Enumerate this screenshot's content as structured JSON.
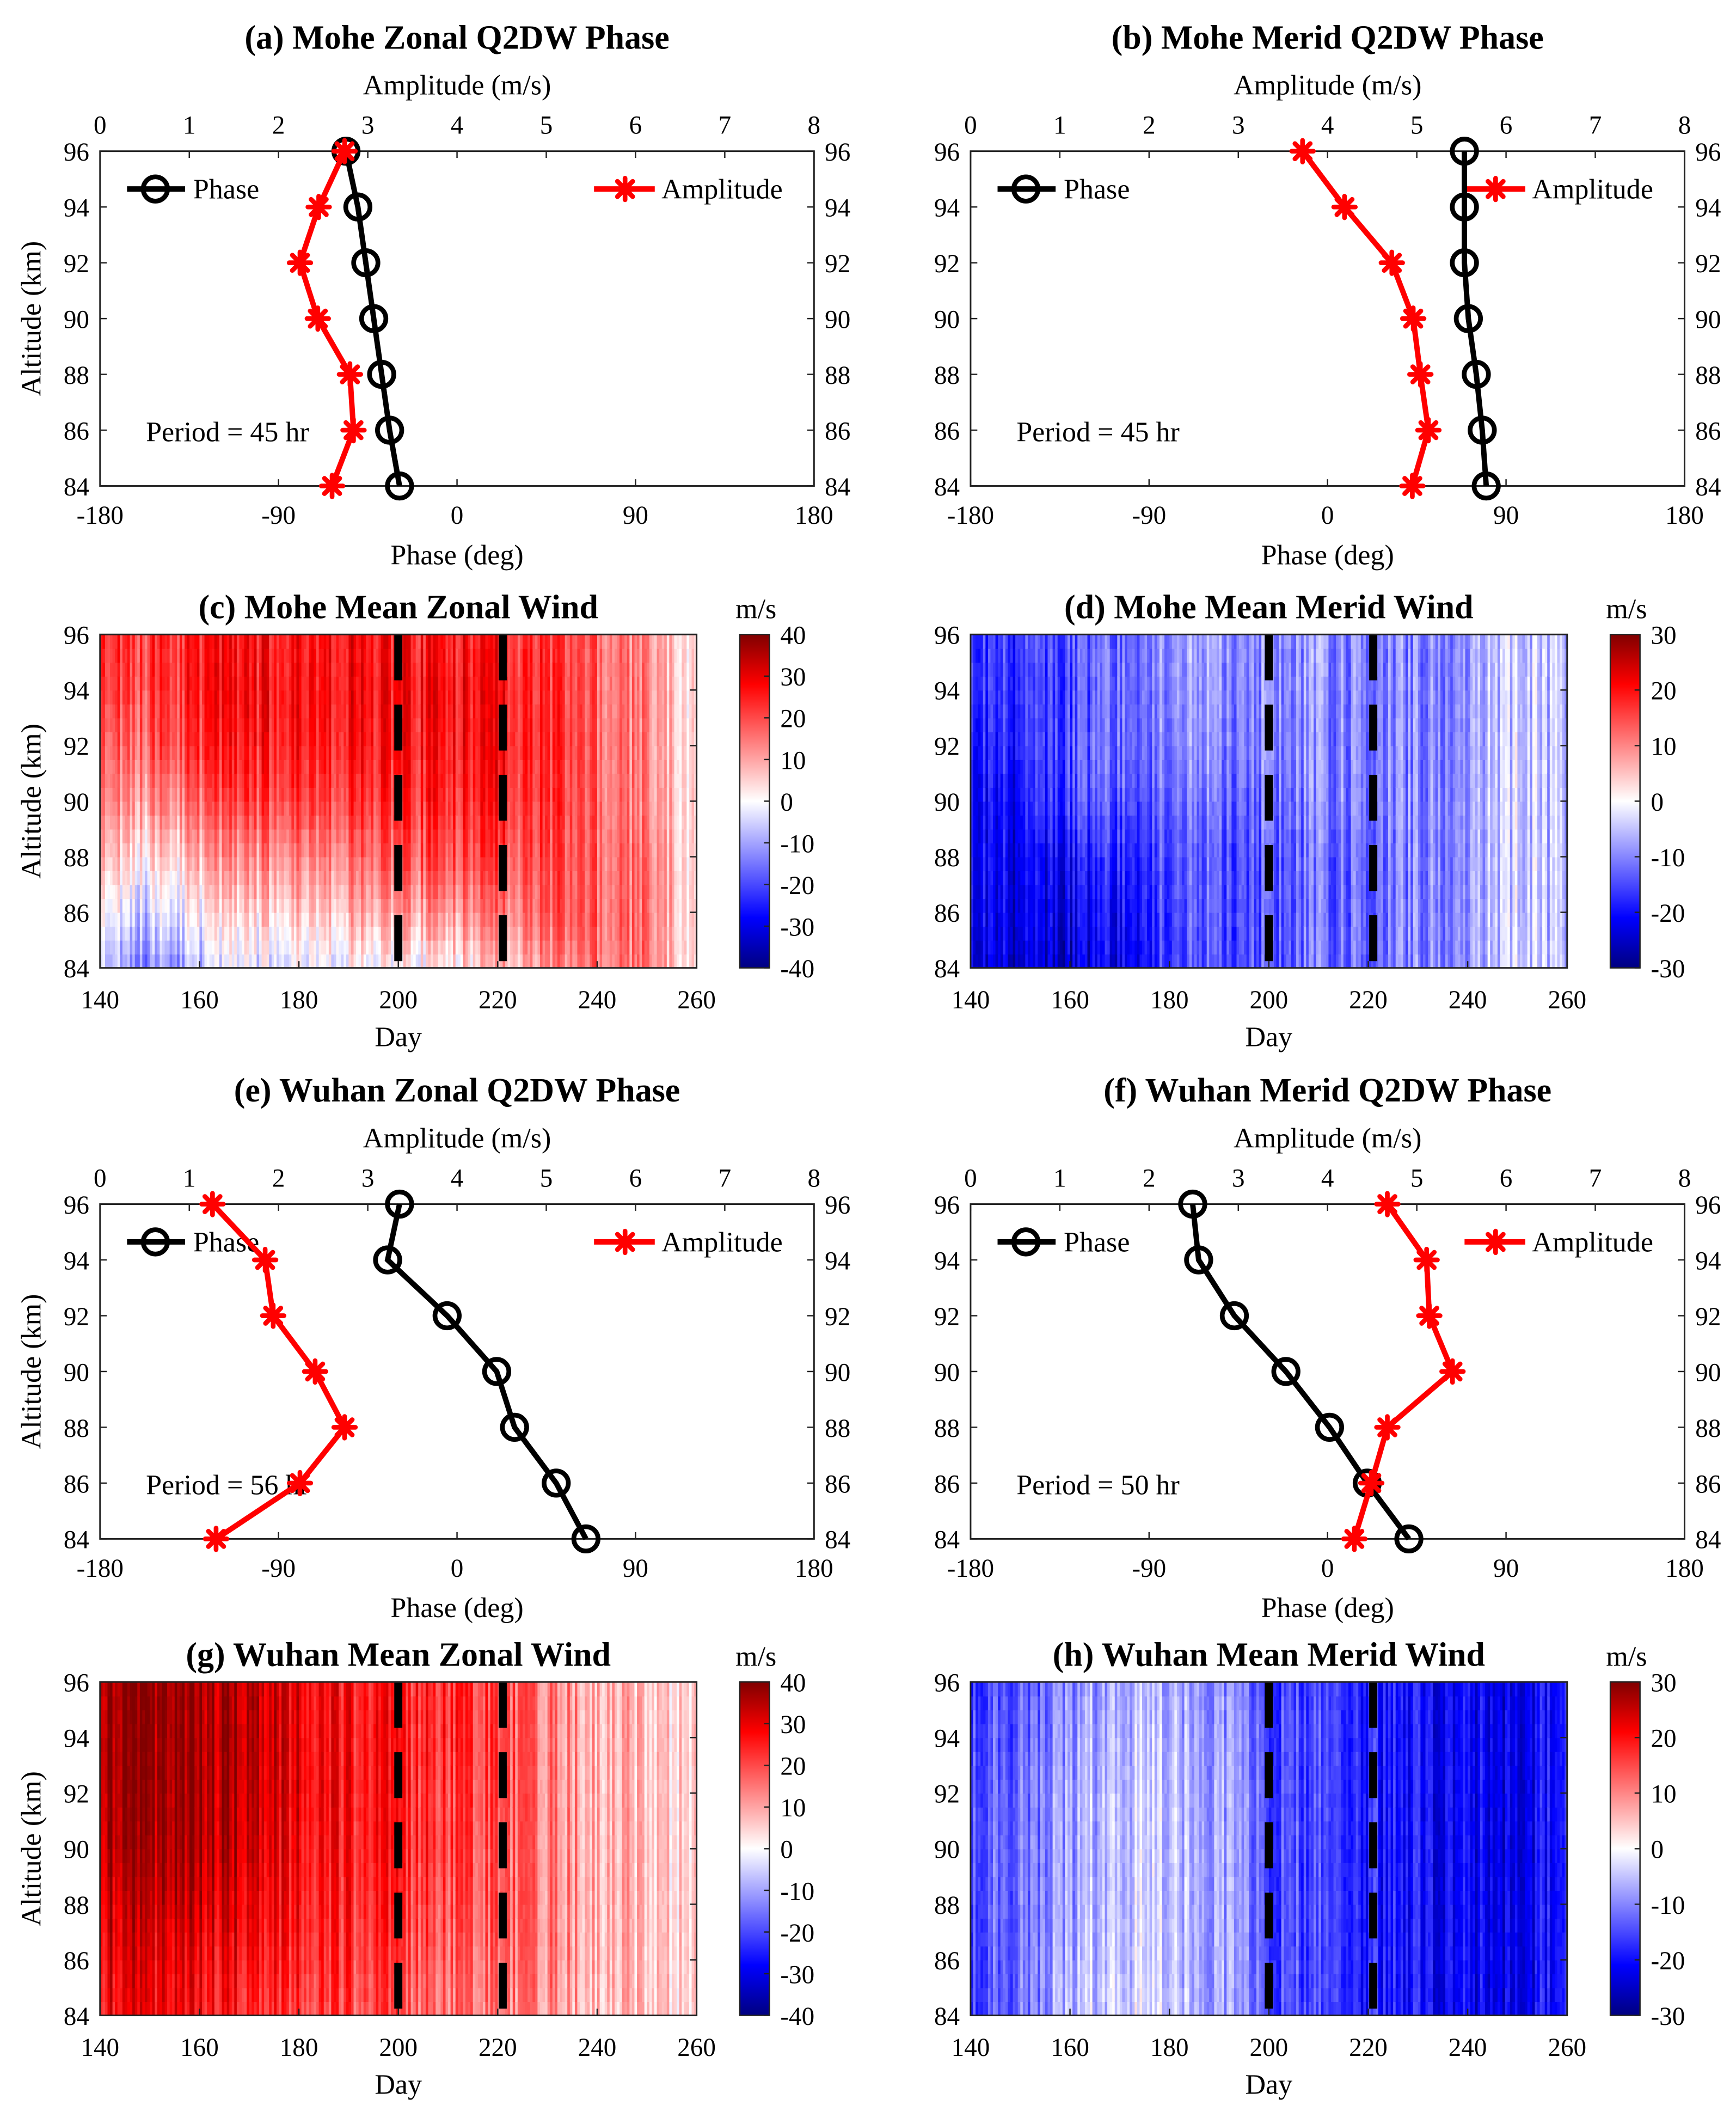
{
  "colors": {
    "phase": "#000000",
    "amplitude": "#ff0000"
  },
  "chart_data": [
    {
      "id": "a",
      "type": "line",
      "title": "(a) Mohe Zonal Q2DW Phase",
      "top_xlabel": "Amplitude (m/s)",
      "xlabel": "Phase (deg)",
      "ylabel": "Altitude (km)",
      "xlim": [
        -180,
        180
      ],
      "top_xlim": [
        0,
        8
      ],
      "ylim": [
        84,
        96
      ],
      "xticks": [
        -180,
        -90,
        0,
        90,
        180
      ],
      "top_xticks": [
        0,
        1,
        2,
        3,
        4,
        5,
        6,
        7,
        8
      ],
      "yticks": [
        84,
        86,
        88,
        90,
        92,
        94,
        96
      ],
      "annotation": "Period = 45 hr",
      "legend": {
        "phase": "Phase",
        "amplitude": "Amplitude"
      },
      "altitude": [
        96,
        94,
        92,
        90,
        88,
        86,
        84
      ],
      "series": [
        {
          "name": "Phase",
          "axis": "bottom",
          "values": [
            -56,
            -50,
            -46,
            -42,
            -38,
            -34,
            -29
          ]
        },
        {
          "name": "Amplitude",
          "axis": "top",
          "values": [
            2.74,
            2.45,
            2.24,
            2.44,
            2.8,
            2.84,
            2.6
          ]
        }
      ]
    },
    {
      "id": "b",
      "type": "line",
      "title": "(b) Mohe Merid Q2DW Phase",
      "top_xlabel": "Amplitude (m/s)",
      "xlabel": "Phase (deg)",
      "ylabel": "",
      "xlim": [
        -180,
        180
      ],
      "top_xlim": [
        0,
        8
      ],
      "ylim": [
        84,
        96
      ],
      "xticks": [
        -180,
        -90,
        0,
        90,
        180
      ],
      "top_xticks": [
        0,
        1,
        2,
        3,
        4,
        5,
        6,
        7,
        8
      ],
      "yticks": [
        84,
        86,
        88,
        90,
        92,
        94,
        96
      ],
      "annotation": "Period = 45 hr",
      "legend": {
        "phase": "Phase",
        "amplitude": "Amplitude"
      },
      "altitude": [
        96,
        94,
        92,
        90,
        88,
        86,
        84
      ],
      "series": [
        {
          "name": "Phase",
          "axis": "bottom",
          "values": [
            69,
            69,
            69,
            71,
            75,
            78,
            80
          ]
        },
        {
          "name": "Amplitude",
          "axis": "top",
          "values": [
            3.72,
            4.19,
            4.72,
            4.96,
            5.04,
            5.13,
            4.95
          ]
        }
      ]
    },
    {
      "id": "c",
      "type": "heatmap",
      "title": "(c) Mohe Mean Zonal Wind",
      "xlabel": "Day",
      "ylabel": "Altitude (km)",
      "cbar_label": "m/s",
      "xlim": [
        140,
        260
      ],
      "ylim": [
        84,
        96
      ],
      "clim": [
        -40,
        40
      ],
      "xticks": [
        140,
        160,
        180,
        200,
        220,
        240,
        260
      ],
      "yticks": [
        84,
        86,
        88,
        90,
        92,
        94,
        96
      ],
      "cbar_ticks": [
        -40,
        -30,
        -20,
        -10,
        0,
        10,
        20,
        30,
        40
      ],
      "dashed_days": [
        200,
        221
      ],
      "days": [
        140,
        150,
        160,
        170,
        180,
        190,
        200,
        210,
        220,
        230,
        240,
        250,
        260
      ],
      "altitudes": [
        84,
        86,
        88,
        90,
        92,
        94,
        96
      ],
      "values": [
        [
          -10,
          -14,
          -8,
          -4,
          -2,
          0,
          -2,
          2,
          6,
          12,
          16,
          14,
          2
        ],
        [
          -3,
          -5,
          0,
          4,
          6,
          8,
          10,
          12,
          14,
          18,
          18,
          14,
          3
        ],
        [
          5,
          3,
          8,
          12,
          14,
          15,
          18,
          20,
          20,
          20,
          18,
          14,
          3
        ],
        [
          10,
          12,
          16,
          20,
          22,
          22,
          22,
          24,
          24,
          22,
          18,
          12,
          3
        ],
        [
          14,
          18,
          22,
          24,
          26,
          26,
          25,
          26,
          26,
          23,
          18,
          12,
          3
        ],
        [
          18,
          21,
          24,
          26,
          27,
          27,
          26,
          27,
          26,
          23,
          18,
          12,
          3
        ],
        [
          20,
          22,
          24,
          25,
          26,
          27,
          25,
          26,
          25,
          22,
          18,
          12,
          3
        ]
      ]
    },
    {
      "id": "d",
      "type": "heatmap",
      "title": "(d) Mohe Mean Merid Wind",
      "xlabel": "Day",
      "ylabel": "",
      "cbar_label": "m/s",
      "xlim": [
        140,
        260
      ],
      "ylim": [
        84,
        96
      ],
      "clim": [
        -30,
        30
      ],
      "xticks": [
        140,
        160,
        180,
        200,
        220,
        240,
        260
      ],
      "yticks": [
        84,
        86,
        88,
        90,
        92,
        94,
        96
      ],
      "cbar_ticks": [
        -30,
        -20,
        -10,
        0,
        10,
        20,
        30
      ],
      "dashed_days": [
        200,
        221
      ],
      "days": [
        140,
        150,
        160,
        170,
        180,
        190,
        200,
        210,
        220,
        230,
        240,
        250,
        260
      ],
      "altitudes": [
        84,
        86,
        88,
        90,
        92,
        94,
        96
      ],
      "values": [
        [
          -24,
          -24,
          -24,
          -22,
          -16,
          -15,
          -14,
          -12,
          -12,
          -10,
          -8,
          -4,
          -6
        ],
        [
          -22,
          -23,
          -22,
          -20,
          -15,
          -14,
          -14,
          -12,
          -12,
          -10,
          -8,
          -4,
          -6
        ],
        [
          -22,
          -22,
          -20,
          -18,
          -14,
          -14,
          -14,
          -12,
          -12,
          -10,
          -8,
          -4,
          -6
        ],
        [
          -22,
          -20,
          -15,
          -14,
          -12,
          -12,
          -12,
          -10,
          -10,
          -10,
          -8,
          -4,
          -6
        ],
        [
          -20,
          -18,
          -14,
          -12,
          -10,
          -10,
          -10,
          -10,
          -10,
          -10,
          -8,
          -4,
          -6
        ],
        [
          -18,
          -17,
          -15,
          -12,
          -9,
          -9,
          -10,
          -9,
          -10,
          -10,
          -8,
          -4,
          -6
        ],
        [
          -18,
          -16,
          -14,
          -12,
          -8,
          -8,
          -10,
          -8,
          -10,
          -10,
          -8,
          -4,
          -6
        ]
      ]
    },
    {
      "id": "e",
      "type": "line",
      "title": "(e) Wuhan Zonal Q2DW Phase",
      "top_xlabel": "Amplitude (m/s)",
      "xlabel": "Phase (deg)",
      "ylabel": "Altitude (km)",
      "xlim": [
        -180,
        180
      ],
      "top_xlim": [
        0,
        8
      ],
      "ylim": [
        84,
        96
      ],
      "xticks": [
        -180,
        -90,
        0,
        90,
        180
      ],
      "top_xticks": [
        0,
        1,
        2,
        3,
        4,
        5,
        6,
        7,
        8
      ],
      "yticks": [
        84,
        86,
        88,
        90,
        92,
        94,
        96
      ],
      "annotation": "Period = 56 hr",
      "legend": {
        "phase": "Phase",
        "amplitude": "Amplitude"
      },
      "altitude": [
        96,
        94,
        92,
        90,
        88,
        86,
        84
      ],
      "series": [
        {
          "name": "Phase",
          "axis": "bottom",
          "values": [
            -29,
            -35,
            -5,
            20,
            29,
            50,
            65
          ]
        },
        {
          "name": "Amplitude",
          "axis": "top",
          "values": [
            1.26,
            1.85,
            1.94,
            2.41,
            2.74,
            2.24,
            1.3
          ]
        }
      ]
    },
    {
      "id": "f",
      "type": "line",
      "title": "(f) Wuhan Merid Q2DW Phase",
      "top_xlabel": "Amplitude (m/s)",
      "xlabel": "Phase (deg)",
      "ylabel": "",
      "xlim": [
        -180,
        180
      ],
      "top_xlim": [
        0,
        8
      ],
      "ylim": [
        84,
        96
      ],
      "xticks": [
        -180,
        -90,
        0,
        90,
        180
      ],
      "top_xticks": [
        0,
        1,
        2,
        3,
        4,
        5,
        6,
        7,
        8
      ],
      "yticks": [
        84,
        86,
        88,
        90,
        92,
        94,
        96
      ],
      "annotation": "Period = 50 hr",
      "legend": {
        "phase": "Phase",
        "amplitude": "Amplitude"
      },
      "altitude": [
        96,
        94,
        92,
        90,
        88,
        86,
        84
      ],
      "series": [
        {
          "name": "Phase",
          "axis": "bottom",
          "values": [
            -68,
            -65,
            -47,
            -21,
            1,
            20,
            41
          ]
        },
        {
          "name": "Amplitude",
          "axis": "top",
          "values": [
            4.67,
            5.11,
            5.14,
            5.4,
            4.67,
            4.49,
            4.3
          ]
        }
      ]
    },
    {
      "id": "g",
      "type": "heatmap",
      "title": "(g) Wuhan Mean Zonal Wind",
      "xlabel": "Day",
      "ylabel": "Altitude (km)",
      "cbar_label": "m/s",
      "xlim": [
        140,
        260
      ],
      "ylim": [
        84,
        96
      ],
      "clim": [
        -40,
        40
      ],
      "xticks": [
        140,
        160,
        180,
        200,
        220,
        240,
        260
      ],
      "yticks": [
        84,
        86,
        88,
        90,
        92,
        94,
        96
      ],
      "cbar_ticks": [
        -40,
        -30,
        -20,
        -10,
        0,
        10,
        20,
        30,
        40
      ],
      "dashed_days": [
        200,
        221
      ],
      "days": [
        140,
        150,
        160,
        170,
        180,
        190,
        200,
        210,
        220,
        230,
        240,
        250,
        260
      ],
      "altitudes": [
        84,
        86,
        88,
        90,
        92,
        94,
        96
      ],
      "values": [
        [
          28,
          28,
          26,
          24,
          22,
          20,
          18,
          16,
          14,
          12,
          8,
          6,
          4
        ],
        [
          30,
          30,
          28,
          27,
          25,
          22,
          20,
          18,
          16,
          14,
          10,
          6,
          4
        ],
        [
          32,
          33,
          32,
          30,
          27,
          24,
          22,
          20,
          18,
          14,
          10,
          6,
          4
        ],
        [
          36,
          36,
          35,
          33,
          28,
          25,
          24,
          22,
          18,
          14,
          10,
          6,
          4
        ],
        [
          37,
          37,
          36,
          34,
          30,
          26,
          24,
          22,
          20,
          14,
          10,
          6,
          4
        ],
        [
          38,
          38,
          36,
          35,
          30,
          26,
          24,
          24,
          20,
          14,
          10,
          6,
          4
        ],
        [
          38,
          38,
          36,
          35,
          30,
          26,
          24,
          24,
          20,
          14,
          10,
          6,
          4
        ]
      ]
    },
    {
      "id": "h",
      "type": "heatmap",
      "title": "(h) Wuhan Mean Merid Wind",
      "xlabel": "Day",
      "ylabel": "",
      "cbar_label": "m/s",
      "xlim": [
        140,
        260
      ],
      "ylim": [
        84,
        96
      ],
      "clim": [
        -30,
        30
      ],
      "xticks": [
        140,
        160,
        180,
        200,
        220,
        240,
        260
      ],
      "yticks": [
        84,
        86,
        88,
        90,
        92,
        94,
        96
      ],
      "cbar_ticks": [
        -30,
        -20,
        -10,
        0,
        10,
        20,
        30
      ],
      "dashed_days": [
        200,
        221
      ],
      "days": [
        140,
        150,
        160,
        170,
        180,
        190,
        200,
        210,
        220,
        230,
        240,
        250,
        260
      ],
      "altitudes": [
        84,
        86,
        88,
        90,
        92,
        94,
        96
      ],
      "values": [
        [
          -16,
          -12,
          -6,
          -3,
          -4,
          -8,
          -14,
          -16,
          -18,
          -20,
          -22,
          -22,
          -20
        ],
        [
          -15,
          -12,
          -7,
          -3,
          -5,
          -8,
          -14,
          -16,
          -18,
          -20,
          -22,
          -22,
          -20
        ],
        [
          -14,
          -12,
          -8,
          -4,
          -5,
          -8,
          -14,
          -16,
          -18,
          -20,
          -22,
          -22,
          -20
        ],
        [
          -14,
          -12,
          -8,
          -4,
          -5,
          -8,
          -14,
          -16,
          -18,
          -20,
          -22,
          -22,
          -20
        ],
        [
          -14,
          -12,
          -8,
          -4,
          -5,
          -8,
          -14,
          -16,
          -18,
          -20,
          -22,
          -22,
          -20
        ],
        [
          -15,
          -13,
          -9,
          -5,
          -6,
          -9,
          -14,
          -16,
          -18,
          -20,
          -22,
          -22,
          -20
        ],
        [
          -16,
          -14,
          -10,
          -6,
          -7,
          -10,
          -15,
          -16,
          -18,
          -20,
          -22,
          -22,
          -20
        ]
      ]
    }
  ]
}
